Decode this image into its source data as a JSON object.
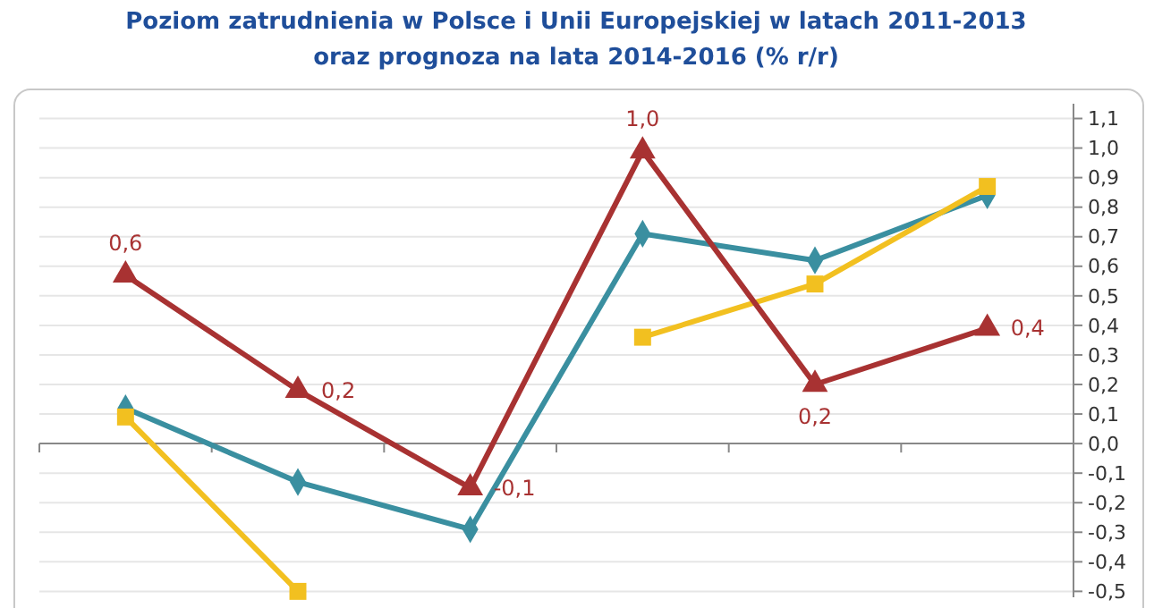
{
  "chart_data": {
    "type": "line",
    "title": "Poziom zatrudnienia w Polsce i Unii Europejskiej w latach 2011-2013",
    "subtitle": "oraz prognoza na lata 2014-2016 (% r/r)",
    "categories": [
      null,
      null,
      null,
      null,
      null,
      null
    ],
    "series": [
      {
        "color": "#3a8fa0",
        "marker": "diamond",
        "values": [
          0.12,
          -0.13,
          -0.29,
          0.71,
          0.62,
          0.84
        ]
      },
      {
        "color": "#f2c020",
        "marker": "square",
        "values": [
          0.09,
          -0.5,
          null,
          0.36,
          0.54,
          0.87
        ]
      },
      {
        "color": "#a83232",
        "marker": "triangle",
        "values": [
          0.57,
          0.18,
          -0.15,
          0.99,
          0.2,
          0.39
        ],
        "value_labels": [
          "0,6",
          "0,2",
          "-0,1",
          "1,0",
          "0,2",
          "0,4"
        ]
      }
    ],
    "ylim": [
      -0.52,
      1.15
    ],
    "yticks": [
      {
        "value": -0.5,
        "label": "-0,5"
      },
      {
        "value": -0.4,
        "label": "-0,4"
      },
      {
        "value": -0.3,
        "label": "-0,3"
      },
      {
        "value": -0.2,
        "label": "-0,2"
      },
      {
        "value": -0.1,
        "label": "-0,1"
      },
      {
        "value": 0,
        "label": "0,0"
      },
      {
        "value": 0.1,
        "label": "0,1"
      },
      {
        "value": 0.2,
        "label": "0,2"
      },
      {
        "value": 0.3,
        "label": "0,3"
      },
      {
        "value": 0.4,
        "label": "0,4"
      },
      {
        "value": 0.5,
        "label": "0,5"
      },
      {
        "value": 0.6,
        "label": "0,6"
      },
      {
        "value": 0.7,
        "label": "0,7"
      },
      {
        "value": 0.8,
        "label": "0,8"
      },
      {
        "value": 0.9,
        "label": "0,9"
      },
      {
        "value": 1.0,
        "label": "1,0"
      },
      {
        "value": 1.1,
        "label": "1,1"
      }
    ],
    "grid": "y",
    "line_style": "solid"
  }
}
